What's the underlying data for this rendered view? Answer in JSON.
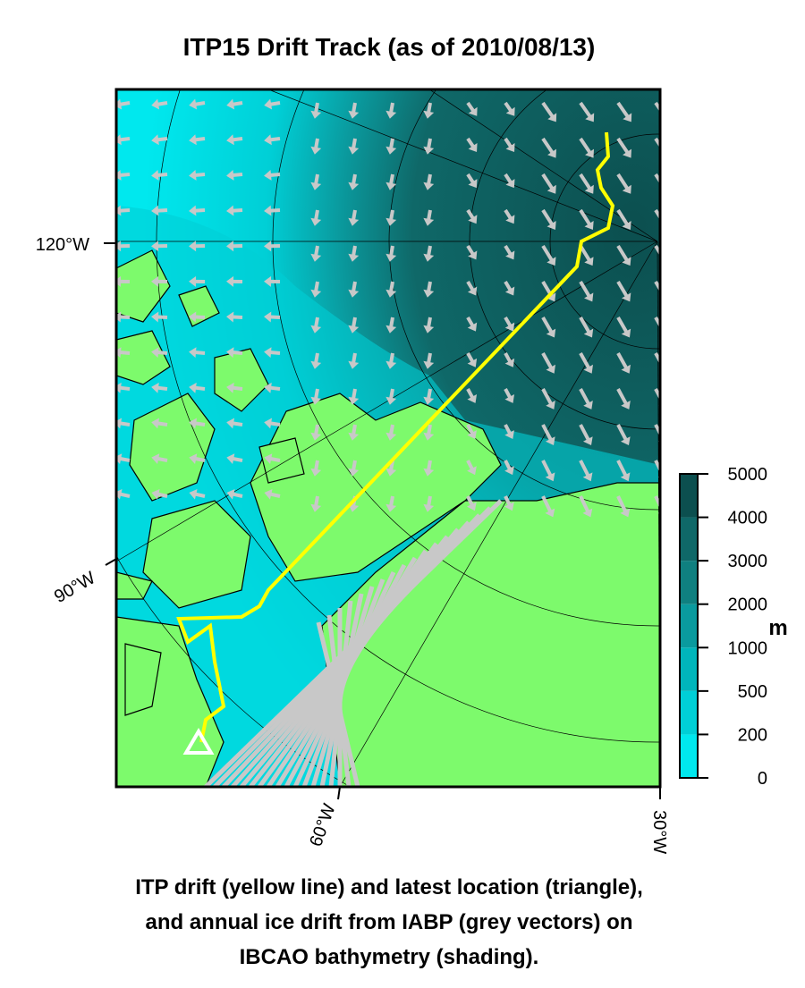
{
  "title": "ITP15 Drift Track (as of 2010/08/13)",
  "map": {
    "longitude_labels": [
      "120°W",
      "90°W",
      "60°W",
      "30°W"
    ],
    "legend": {
      "unit": "m",
      "levels": [
        0,
        200,
        500,
        1000,
        2000,
        3000,
        4000,
        5000
      ],
      "colors": [
        "#00e8ee",
        "#00cfd6",
        "#00b5bb",
        "#0a9a9e",
        "#0f8080",
        "#0f6868",
        "#0c4f4f"
      ]
    }
  },
  "caption": [
    "ITP drift (yellow line) and latest location (triangle),",
    "and annual ice drift from IABP (grey vectors) on",
    "IBCAO bathymetry (shading)."
  ]
}
